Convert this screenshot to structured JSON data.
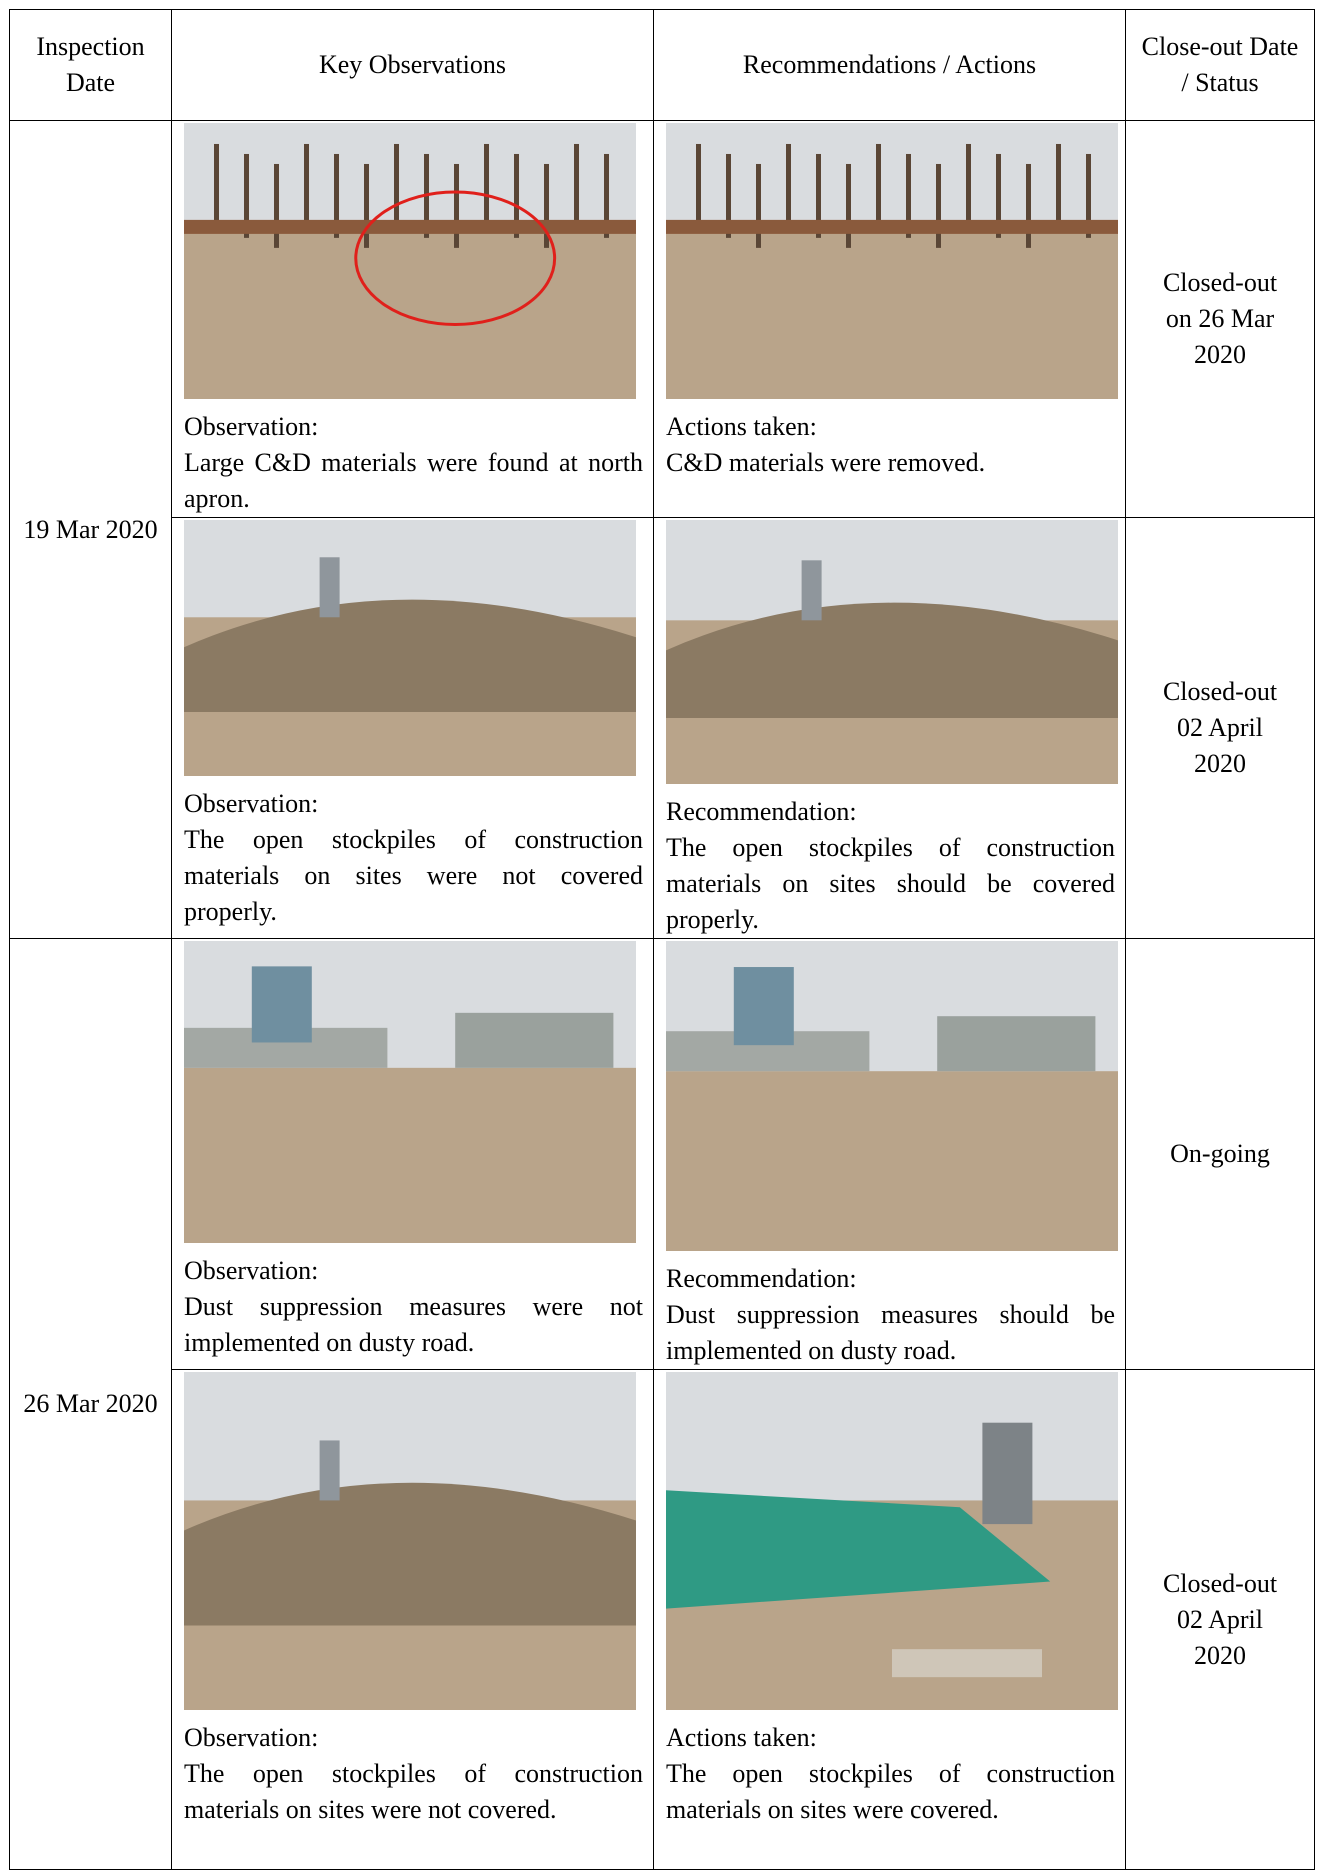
{
  "table": {
    "header": [
      "Inspection Date",
      "Key Observations",
      "Recommendations / Actions",
      "Close-out Date / Status"
    ],
    "rows": [
      {
        "date": "19 Mar 2020",
        "entries": [
          {
            "observation": {
              "label": "Observation:",
              "text": "Large C&D materials were found at north apron."
            },
            "action": {
              "label": "Actions taken:",
              "text": "C&D materials were removed."
            },
            "status": "Closed-out on 26 Mar 2020"
          },
          {
            "observation": {
              "label": "Observation:",
              "text": "The open stockpiles of construction materials on sites were not covered properly."
            },
            "action": {
              "label": "Recommendation:",
              "text": "The open stockpiles of construction materials on sites should be covered properly."
            },
            "status": "Closed-out 02 April 2020"
          }
        ]
      },
      {
        "date": "26 Mar 2020",
        "entries": [
          {
            "observation": {
              "label": "Observation:",
              "text": "Dust suppression measures were not implemented on dusty road."
            },
            "action": {
              "label": "Recommendation:",
              "text": "Dust suppression measures should be implemented on dusty road."
            },
            "status": "On-going"
          },
          {
            "observation": {
              "label": "Observation:",
              "text": "The open stockpiles of construction materials on sites were not covered."
            },
            "action": {
              "label": "Actions taken:",
              "text": "The open stockpiles of construction materials on sites were covered."
            },
            "status": "Closed-out 02 April 2020"
          }
        ]
      }
    ]
  }
}
